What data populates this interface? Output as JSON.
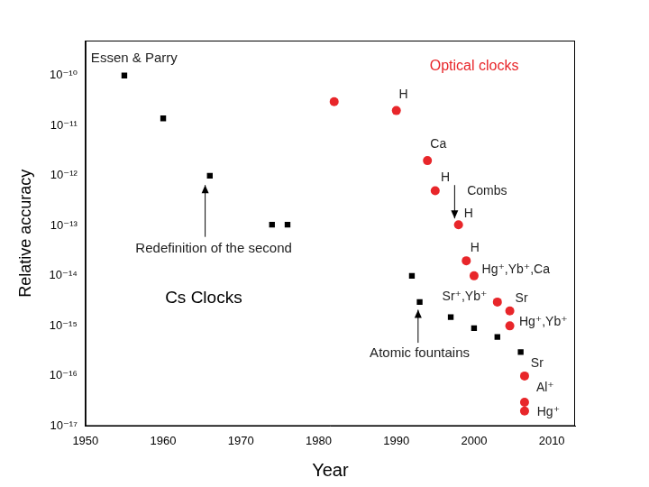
{
  "chart_data": {
    "type": "scatter",
    "x_label": "Year",
    "y_label": "Relative accuracy",
    "log": "y",
    "grid": false,
    "xlim": [
      1950,
      2013
    ],
    "xticks": [
      1950,
      1960,
      1970,
      1980,
      1990,
      2000,
      2010
    ],
    "ylim": [
      1e-17,
      5e-10
    ],
    "yticks": [
      {
        "value": 1e-10,
        "label": "10⁻¹⁰"
      },
      {
        "value": 1e-11,
        "label": "10⁻¹¹"
      },
      {
        "value": 1e-12,
        "label": "10⁻¹²"
      },
      {
        "value": 1e-13,
        "label": "10⁻¹³"
      },
      {
        "value": 1e-14,
        "label": "10⁻¹⁴"
      },
      {
        "value": 1e-15,
        "label": "10⁻¹⁵"
      },
      {
        "value": 1e-16,
        "label": "10⁻¹⁶"
      },
      {
        "value": 1e-17,
        "label": "10⁻¹⁷"
      }
    ],
    "series": [
      {
        "name": "Cs Clocks",
        "color": "#000000",
        "marker": "square",
        "x": [
          1955,
          1960,
          1966,
          1974,
          1976,
          1992,
          1993,
          1997,
          2000,
          2003,
          2006
        ],
        "values": [
          1e-10,
          1.4e-11,
          1e-12,
          1.05e-13,
          1.05e-13,
          1e-14,
          3e-15,
          1.5e-15,
          9e-16,
          6e-16,
          3e-16
        ]
      },
      {
        "name": "Optical clocks",
        "color": "#e8262a",
        "marker": "circle",
        "x": [
          1982,
          1990,
          1994,
          1995,
          1998,
          1999,
          2000,
          2003,
          2004.6,
          2004.6,
          2006.5,
          2006.5,
          2006.5
        ],
        "values": [
          3e-11,
          2e-11,
          2e-12,
          5e-13,
          1.05e-13,
          2e-14,
          1e-14,
          3e-15,
          2e-15,
          1e-15,
          1e-16,
          3e-17,
          2e-17
        ]
      }
    ],
    "annotations": [
      "Essen & Parry",
      "Redefinition of the second",
      "Atomic fountains",
      "Combs",
      "H",
      "Ca",
      "H",
      "H",
      "H",
      "Hg⁺,Yb⁺,Ca",
      "Sr⁺,Yb⁺",
      "Sr",
      "Hg⁺,Yb⁺",
      "Sr",
      "Al⁺",
      "Hg⁺"
    ]
  }
}
